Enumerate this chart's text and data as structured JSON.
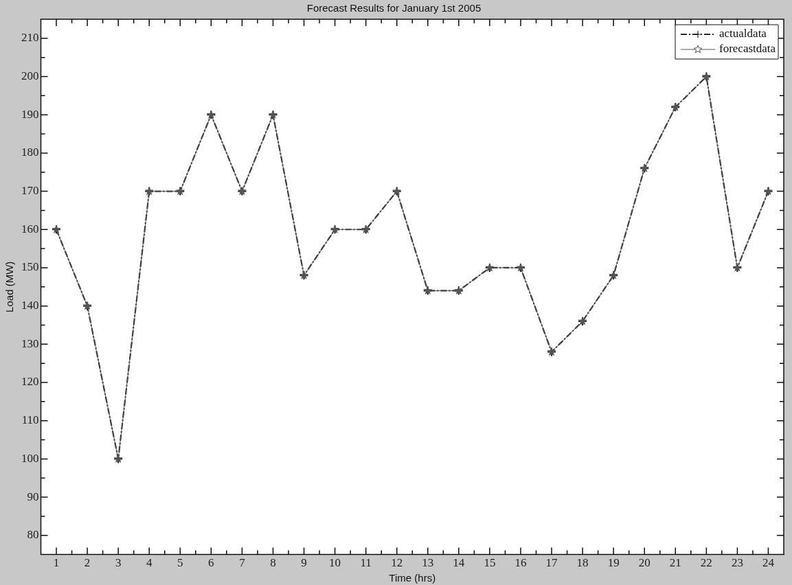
{
  "chart_data": {
    "type": "line",
    "title": "Forecast Results for January 1st 2005",
    "xlabel": "Time (hrs)",
    "ylabel": "Load (MW)",
    "x": [
      1,
      2,
      3,
      4,
      5,
      6,
      7,
      8,
      9,
      10,
      11,
      12,
      13,
      14,
      15,
      16,
      17,
      18,
      19,
      20,
      21,
      22,
      23,
      24
    ],
    "xlim": [
      0.5,
      24.5
    ],
    "xticks": [
      1,
      {
        "value": 1.5,
        "label": null
      },
      2,
      {
        "value": 2.5,
        "label": null
      },
      3,
      {
        "value": 3.5,
        "label": null
      },
      4,
      {
        "value": 4.5,
        "label": null
      },
      5,
      {
        "value": 5.5,
        "label": null
      },
      6,
      {
        "value": 6.5,
        "label": null
      },
      7,
      {
        "value": 7.5,
        "label": null
      },
      8,
      {
        "value": 8.5,
        "label": null
      },
      9,
      {
        "value": 9.5,
        "label": null
      },
      10,
      {
        "value": 10.5,
        "label": null
      },
      11,
      {
        "value": 11.5,
        "label": null
      },
      12,
      {
        "value": 12.5,
        "label": null
      },
      13,
      {
        "value": 13.5,
        "label": null
      },
      14,
      {
        "value": 14.5,
        "label": null
      },
      15,
      {
        "value": 15.5,
        "label": null
      },
      16,
      {
        "value": 16.5,
        "label": null
      },
      17,
      {
        "value": 17.5,
        "label": null
      },
      18,
      {
        "value": 18.5,
        "label": null
      },
      19,
      {
        "value": 19.5,
        "label": null
      },
      20,
      {
        "value": 20.5,
        "label": null
      },
      21,
      {
        "value": 21.5,
        "label": null
      },
      22,
      {
        "value": 22.5,
        "label": null
      },
      23,
      {
        "value": 23.5,
        "label": null
      },
      24
    ],
    "ylim": [
      75,
      215
    ],
    "yticks": [
      80,
      {
        "value": 85,
        "label": null
      },
      90,
      {
        "value": 95,
        "label": null
      },
      100,
      {
        "value": 105,
        "label": null
      },
      110,
      {
        "value": 115,
        "label": null
      },
      120,
      {
        "value": 125,
        "label": null
      },
      130,
      {
        "value": 135,
        "label": null
      },
      140,
      {
        "value": 145,
        "label": null
      },
      150,
      {
        "value": 155,
        "label": null
      },
      160,
      {
        "value": 165,
        "label": null
      },
      170,
      {
        "value": 175,
        "label": null
      },
      180,
      {
        "value": 185,
        "label": null
      },
      190,
      {
        "value": 195,
        "label": null
      },
      200,
      {
        "value": 205,
        "label": null
      },
      210
    ],
    "legend": "top right",
    "series": [
      {
        "name": "actualdata",
        "color": "#2a2a2a",
        "line_style": "dashdot",
        "marker": "cross",
        "values": [
          160,
          140,
          100,
          170,
          170,
          190,
          170,
          190,
          148,
          160,
          160,
          170,
          144,
          144,
          150,
          150,
          128,
          136,
          148,
          176,
          192,
          200,
          150,
          170
        ]
      },
      {
        "name": "forecastdata",
        "color": "#555555",
        "line_style": "solid",
        "marker": "star",
        "values": [
          160,
          140,
          100,
          170,
          170,
          190,
          170,
          190,
          148,
          160,
          160,
          170,
          144,
          144,
          150,
          150,
          128,
          136,
          148,
          176,
          192,
          200,
          150,
          170
        ]
      }
    ]
  }
}
